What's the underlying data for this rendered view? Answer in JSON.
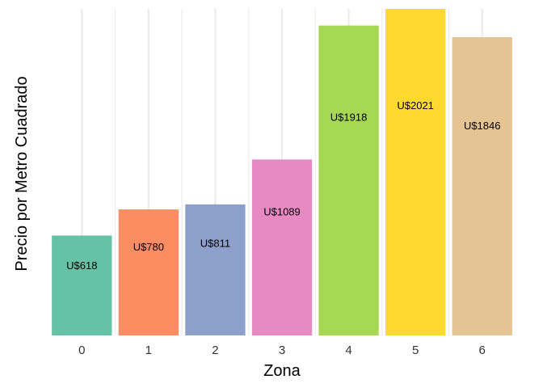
{
  "chart_data": {
    "type": "bar",
    "title": "",
    "xlabel": "Zona",
    "ylabel": "Precio por Metro Cuadrado",
    "categories": [
      "0",
      "1",
      "2",
      "3",
      "4",
      "5",
      "6"
    ],
    "values": [
      618,
      780,
      811,
      1089,
      1918,
      2021,
      1846
    ],
    "data_labels": [
      "U$618",
      "U$780",
      "U$811",
      "U$1089",
      "U$1918",
      "U$2021",
      "U$1846"
    ],
    "colors": [
      "#66c2a5",
      "#fc8d62",
      "#8da0cb",
      "#e78ac3",
      "#a6d854",
      "#ffd92f",
      "#e5c494"
    ],
    "ylim": [
      0,
      2021
    ],
    "grid": {
      "major_x": true,
      "minor_x": true,
      "y": false,
      "color": "#ebebeb"
    },
    "legend": "none"
  }
}
